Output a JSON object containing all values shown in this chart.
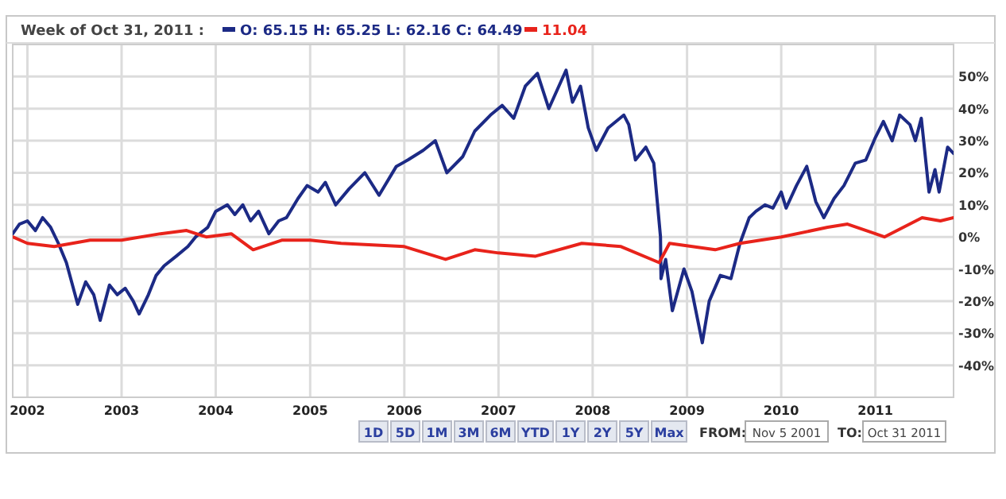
{
  "chart_data": {
    "type": "line",
    "title": "Week of Oct 31, 2011 :",
    "annotations": [
      "O: 65.15 H: 65.25 L: 62.16 C: 64.49",
      "11.04",
      "1D",
      "5D",
      "1M",
      "3M",
      "6M",
      "YTD",
      "1Y",
      "2Y",
      "5Y",
      "Max",
      "FROM:",
      "Nov 5 2001",
      "TO:",
      "Oct 31 2011"
    ],
    "xlim": [
      "2001-11-05",
      "2011-10-31"
    ],
    "xticks": [
      "2002",
      "2003",
      "2004",
      "2005",
      "2006",
      "2007",
      "2008",
      "2009",
      "2010",
      "2011"
    ],
    "ylim": [
      -50,
      60
    ],
    "yticks": [
      {
        "value": 50,
        "label": "50%"
      },
      {
        "value": 40,
        "label": "40%"
      },
      {
        "value": 30,
        "label": "30%"
      },
      {
        "value": 20,
        "label": "20%"
      },
      {
        "value": 10,
        "label": "10%"
      },
      {
        "value": 0,
        "label": "0%"
      },
      {
        "value": -10,
        "label": "-10%"
      },
      {
        "value": -20,
        "label": "-20%"
      },
      {
        "value": -30,
        "label": "-30%"
      },
      {
        "value": -40,
        "label": "-40%"
      }
    ],
    "grid": true,
    "series": [
      {
        "color": "#1c2a85",
        "x": [
          "2001-11-05",
          "2001-12-01",
          "2002-01-01",
          "2002-02-01",
          "2002-03-01",
          "2002-04-01",
          "2002-05-01",
          "2002-06-01",
          "2002-07-15",
          "2002-08-15",
          "2002-09-15",
          "2002-10-10",
          "2002-11-15",
          "2002-12-15",
          "2003-01-15",
          "2003-02-15",
          "2003-03-10",
          "2003-04-15",
          "2003-05-15",
          "2003-06-15",
          "2003-08-01",
          "2003-09-15",
          "2003-10-15",
          "2003-12-01",
          "2004-01-01",
          "2004-02-15",
          "2004-03-15",
          "2004-04-15",
          "2004-05-15",
          "2004-06-15",
          "2004-07-25",
          "2004-09-01",
          "2004-10-01",
          "2004-11-15",
          "2004-12-20",
          "2005-02-01",
          "2005-03-01",
          "2005-04-10",
          "2005-06-01",
          "2005-08-01",
          "2005-09-25",
          "2005-12-01",
          "2006-01-15",
          "2006-03-15",
          "2006-05-01",
          "2006-06-15",
          "2006-08-15",
          "2006-10-01",
          "2006-12-01",
          "2007-01-15",
          "2007-03-01",
          "2007-04-15",
          "2007-06-01",
          "2007-07-15",
          "2007-09-20",
          "2007-10-15",
          "2007-11-15",
          "2007-12-15",
          "2008-01-15",
          "2008-03-01",
          "2008-05-01",
          "2008-05-20",
          "2008-06-15",
          "2008-07-25",
          "2008-08-25",
          "2008-09-20",
          "2008-09-22",
          "2008-10-10",
          "2008-11-05",
          "2008-12-20",
          "2009-01-20",
          "2009-03-01",
          "2009-03-28",
          "2009-05-10",
          "2009-06-20",
          "2009-07-25",
          "2009-08-30",
          "2009-09-25",
          "2009-10-30",
          "2009-11-30",
          "2010-01-01",
          "2010-01-20",
          "2010-03-01",
          "2010-04-10",
          "2010-05-15",
          "2010-06-15",
          "2010-07-25",
          "2010-09-01",
          "2010-10-15",
          "2010-11-25",
          "2011-01-01",
          "2011-02-01",
          "2011-03-07",
          "2011-04-05",
          "2011-05-15",
          "2011-06-05",
          "2011-06-28",
          "2011-07-28",
          "2011-08-20",
          "2011-09-05",
          "2011-10-08",
          "2011-10-31"
        ],
        "values": [
          1,
          4,
          5,
          2,
          6,
          3,
          -2,
          -8,
          -21,
          -14,
          -18,
          -26,
          -15,
          -18,
          -16,
          -20,
          -24,
          -18,
          -12,
          -9,
          -6,
          -3,
          0,
          3,
          8,
          10,
          7,
          10,
          5,
          8,
          1,
          5,
          6,
          12,
          16,
          14,
          17,
          10,
          15,
          20,
          13,
          22,
          24,
          27,
          30,
          20,
          25,
          33,
          38,
          41,
          37,
          47,
          51,
          40,
          52,
          42,
          47,
          34,
          27,
          34,
          38,
          35,
          24,
          28,
          23,
          0,
          -13,
          -7,
          -23,
          -10,
          -17,
          -33,
          -20,
          -12,
          -13,
          -2,
          6,
          8,
          10,
          9,
          14,
          9,
          16,
          22,
          11,
          6,
          12,
          16,
          23,
          24,
          31,
          36,
          30,
          38,
          35,
          30,
          37,
          14,
          21,
          14,
          28,
          26
        ]
      },
      {
        "color": "#e8231b",
        "x": [
          "2001-11-05",
          "2002-01-01",
          "2002-04-15",
          "2002-09-01",
          "2003-01-01",
          "2003-06-01",
          "2003-09-10",
          "2003-11-25",
          "2004-03-01",
          "2004-05-25",
          "2004-09-15",
          "2005-01-01",
          "2005-05-01",
          "2006-01-01",
          "2006-06-10",
          "2006-10-01",
          "2007-01-01",
          "2007-05-25",
          "2007-11-20",
          "2008-04-20",
          "2008-09-15",
          "2008-10-25",
          "2009-04-20",
          "2009-07-25",
          "2010-01-01",
          "2010-06-30",
          "2010-09-15",
          "2011-01-01",
          "2011-02-05",
          "2011-07-01",
          "2011-09-10",
          "2011-10-31"
        ],
        "values": [
          0,
          -2,
          -3,
          -1,
          -1,
          1,
          2,
          0,
          1,
          -4,
          -1,
          -1,
          -2,
          -3,
          -7,
          -4,
          -5,
          -6,
          -2,
          -3,
          -8,
          -2,
          -4,
          -2,
          0,
          3,
          4,
          1,
          0,
          6,
          5,
          6
        ]
      }
    ]
  }
}
